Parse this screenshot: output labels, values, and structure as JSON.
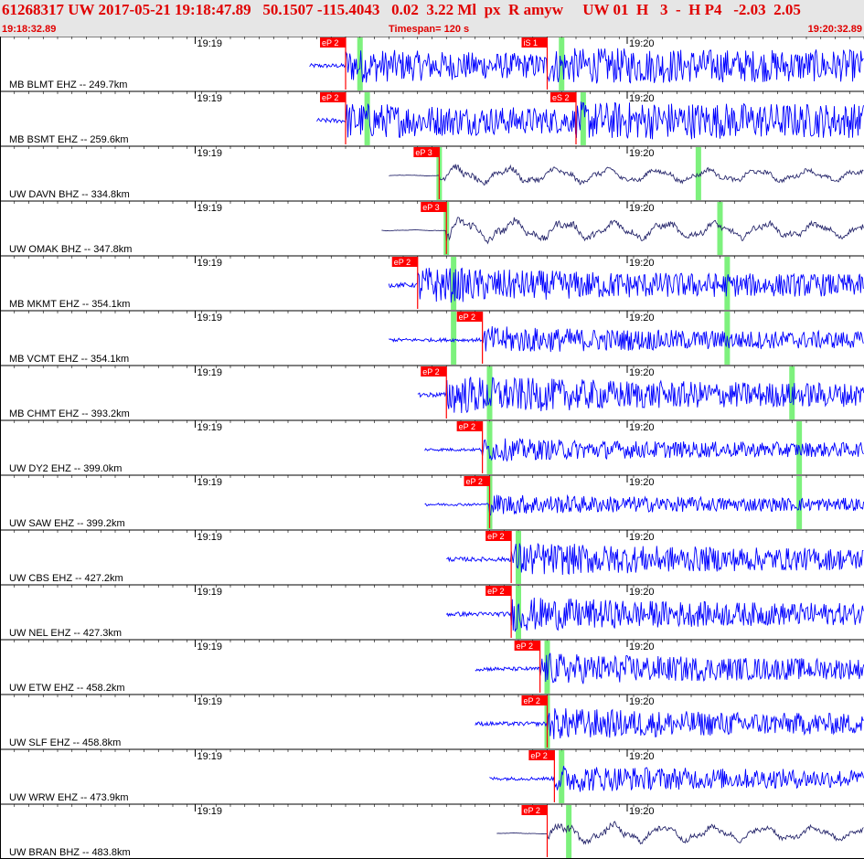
{
  "header": {
    "title": "61268317 UW 2017-05-21 19:18:47.89   50.1507 -115.4043   0.02  3.22 Ml  px  R amyw     UW 01  H   3  -  H P4   -2.03  2.05",
    "start_time": "19:18:32.89",
    "timespan": "Timespan= 120 s",
    "end_time": "19:20:32.89"
  },
  "colors": {
    "blue_trace": "#0000ff",
    "dark_trace": "#2a2a6e",
    "pick_box": "#ff0000",
    "pick_text": "#ffffff",
    "theoretical_marker": "#66ee66",
    "grid": "#000000"
  },
  "chart_data": {
    "type": "line",
    "x_range": [
      "19:18:32.89",
      "19:20:32.89"
    ],
    "timespan_s": 120,
    "tick_labels": [
      "19:19",
      "19:20"
    ],
    "tick_times_s": [
      27.11,
      87.11
    ],
    "traces": [
      {
        "label": "MB BLMT EHZ -- 249.7km",
        "start_s": 43,
        "picks": [
          {
            "label": "eP 2",
            "t_s": 48
          },
          {
            "label": "iS 1",
            "t_s": 76
          }
        ],
        "markers_s": [
          50,
          78
        ],
        "color": "blue",
        "amp": 0.75
      },
      {
        "label": "MB BSMT EHZ -- 259.6km",
        "start_s": 44,
        "picks": [
          {
            "label": "eP 2",
            "t_s": 48
          },
          {
            "label": "eS 2",
            "t_s": 80
          }
        ],
        "markers_s": [
          51,
          81
        ],
        "color": "blue",
        "amp": 0.8
      },
      {
        "label": "UW DAVN BHZ -- 334.8km",
        "start_s": 54,
        "picks": [
          {
            "label": "eP 3",
            "t_s": 61
          }
        ],
        "markers_s": [
          61,
          97
        ],
        "color": "dark",
        "amp": 0.55
      },
      {
        "label": "UW OMAK BHZ -- 347.8km",
        "start_s": 53,
        "picks": [
          {
            "label": "eP 3",
            "t_s": 62
          }
        ],
        "markers_s": [
          62,
          100
        ],
        "color": "dark",
        "amp": 0.7
      },
      {
        "label": "MB MKMT EHZ -- 354.1km",
        "start_s": 54,
        "picks": [
          {
            "label": "eP 2",
            "t_s": 58
          }
        ],
        "markers_s": [
          63,
          101
        ],
        "color": "blue",
        "amp": 0.8
      },
      {
        "label": "MB VCMT EHZ -- 354.1km",
        "start_s": 54,
        "picks": [
          {
            "label": "eP 2",
            "t_s": 67
          }
        ],
        "markers_s": [
          63,
          101
        ],
        "color": "blue",
        "amp": 0.6
      },
      {
        "label": "MB CHMT EHZ -- 393.2km",
        "start_s": 58,
        "picks": [
          {
            "label": "eP 2",
            "t_s": 62
          }
        ],
        "markers_s": [
          68,
          110
        ],
        "color": "blue",
        "amp": 0.85
      },
      {
        "label": "UW DY2 EHZ -- 399.0km",
        "start_s": 59,
        "picks": [
          {
            "label": "eP 2",
            "t_s": 67
          }
        ],
        "markers_s": [
          68,
          111
        ],
        "color": "blue",
        "amp": 0.5
      },
      {
        "label": "UW SAW EHZ -- 399.2km",
        "start_s": 59,
        "picks": [
          {
            "label": "eP 2",
            "t_s": 68
          }
        ],
        "markers_s": [
          68,
          111
        ],
        "color": "blue",
        "amp": 0.45
      },
      {
        "label": "UW CBS EHZ -- 427.2km",
        "start_s": 62,
        "picks": [
          {
            "label": "eP 2",
            "t_s": 71
          }
        ],
        "markers_s": [
          72
        ],
        "color": "blue",
        "amp": 0.75
      },
      {
        "label": "UW NEL EHZ -- 427.3km",
        "start_s": 62,
        "picks": [
          {
            "label": "eP 2",
            "t_s": 71
          }
        ],
        "markers_s": [
          72
        ],
        "color": "blue",
        "amp": 0.75
      },
      {
        "label": "UW ETW EHZ -- 458.2km",
        "start_s": 66,
        "picks": [
          {
            "label": "eP 2",
            "t_s": 75
          }
        ],
        "markers_s": [
          76
        ],
        "color": "blue",
        "amp": 0.7
      },
      {
        "label": "UW SLF EHZ -- 458.8km",
        "start_s": 66,
        "picks": [
          {
            "label": "eP 2",
            "t_s": 76
          }
        ],
        "markers_s": [
          76
        ],
        "color": "blue",
        "amp": 0.7
      },
      {
        "label": "UW WRW EHZ -- 473.9km",
        "start_s": 68,
        "picks": [
          {
            "label": "eP 2",
            "t_s": 77
          }
        ],
        "markers_s": [
          78
        ],
        "color": "blue",
        "amp": 0.6
      },
      {
        "label": "UW BRAN BHZ -- 483.8km",
        "start_s": 69,
        "picks": [
          {
            "label": "eP 2",
            "t_s": 76
          }
        ],
        "markers_s": [
          79
        ],
        "color": "dark",
        "amp": 0.6
      }
    ]
  }
}
